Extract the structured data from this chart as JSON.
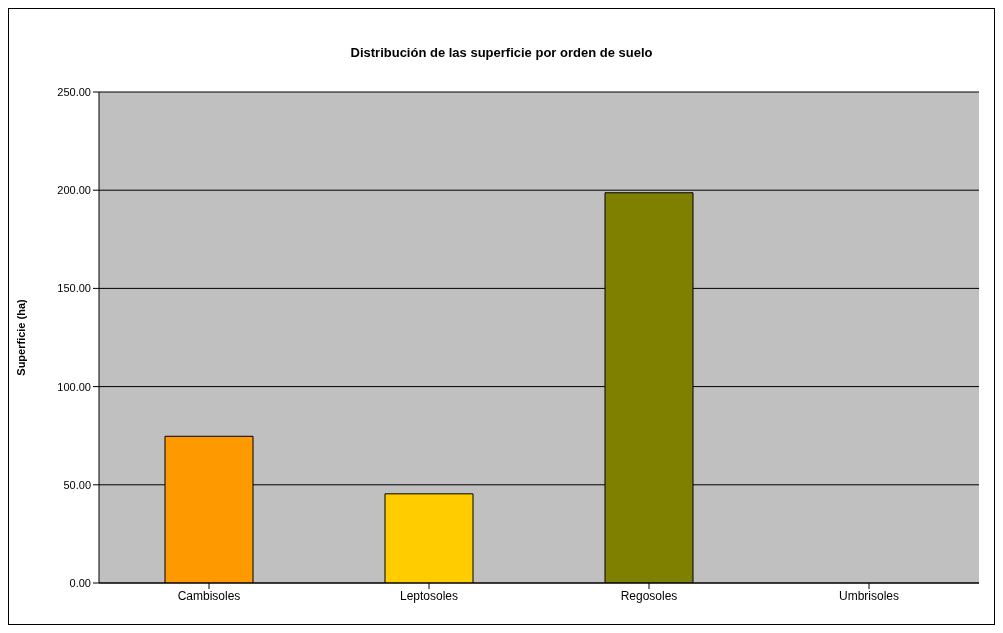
{
  "chart_data": {
    "type": "bar",
    "title": "Distribución de las superficie por orden de suelo",
    "ylabel": "Superficie (ha)",
    "categories": [
      "Cambisoles",
      "Leptosoles",
      "Regosoles",
      "Umbrisoles"
    ],
    "values": [
      74.7,
      45.4,
      198.7,
      0
    ],
    "colors": [
      "#ff9900",
      "#ffcc00",
      "#808000",
      "#808080"
    ],
    "ylim": [
      0,
      250
    ],
    "yticks": [
      {
        "value": 0,
        "label": "0.00"
      },
      {
        "value": 50,
        "label": "50.00"
      },
      {
        "value": 100,
        "label": "100.00"
      },
      {
        "value": 150,
        "label": "150.00"
      },
      {
        "value": 200,
        "label": "200.00"
      },
      {
        "value": 250,
        "label": "250.00"
      }
    ],
    "grid": "y",
    "legend": false
  }
}
